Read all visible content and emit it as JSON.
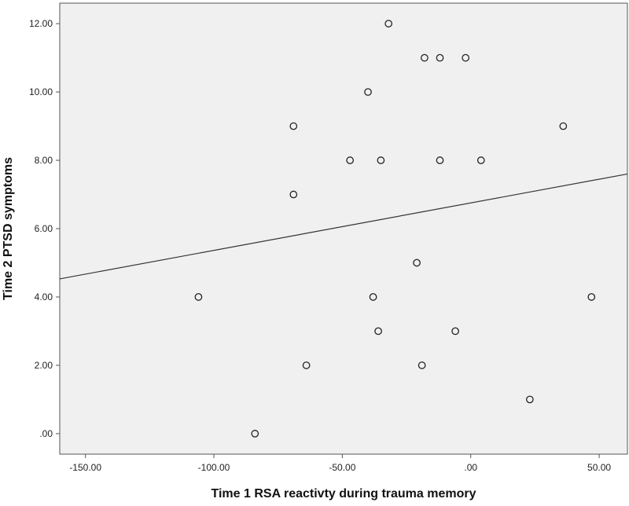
{
  "chart_data": {
    "type": "scatter",
    "xlabel": "Time 1 RSA reactivty during trauma memory",
    "ylabel": "Time 2 PTSD symptoms",
    "xlim": [
      -160,
      61
    ],
    "ylim": [
      -0.6,
      12.6
    ],
    "x_ticks": [
      -150,
      -100,
      -50,
      0,
      50
    ],
    "x_tick_labels": [
      "-150.00",
      "-100.00",
      "-50.00",
      ".00",
      "50.00"
    ],
    "y_ticks": [
      0,
      2,
      4,
      6,
      8,
      10,
      12
    ],
    "y_tick_labels": [
      ".00",
      "2.00",
      "4.00",
      "6.00",
      "8.00",
      "10.00",
      "12.00"
    ],
    "grid": false,
    "plot_background": "#f0f0f0",
    "points": [
      {
        "x": -32,
        "y": 12
      },
      {
        "x": -18,
        "y": 11
      },
      {
        "x": -12,
        "y": 11
      },
      {
        "x": -2,
        "y": 11
      },
      {
        "x": -40,
        "y": 10
      },
      {
        "x": -69,
        "y": 9
      },
      {
        "x": 36,
        "y": 9
      },
      {
        "x": -47,
        "y": 8
      },
      {
        "x": -35,
        "y": 8
      },
      {
        "x": -12,
        "y": 8
      },
      {
        "x": 4,
        "y": 8
      },
      {
        "x": -69,
        "y": 7
      },
      {
        "x": -21,
        "y": 5
      },
      {
        "x": -106,
        "y": 4
      },
      {
        "x": -38,
        "y": 4
      },
      {
        "x": 47,
        "y": 4
      },
      {
        "x": -36,
        "y": 3
      },
      {
        "x": -6,
        "y": 3
      },
      {
        "x": -64,
        "y": 2
      },
      {
        "x": -19,
        "y": 2
      },
      {
        "x": 23,
        "y": 1
      },
      {
        "x": -84,
        "y": 0
      }
    ],
    "fit_line": {
      "x": [
        -160,
        61
      ],
      "y": [
        4.53,
        7.6
      ]
    }
  }
}
